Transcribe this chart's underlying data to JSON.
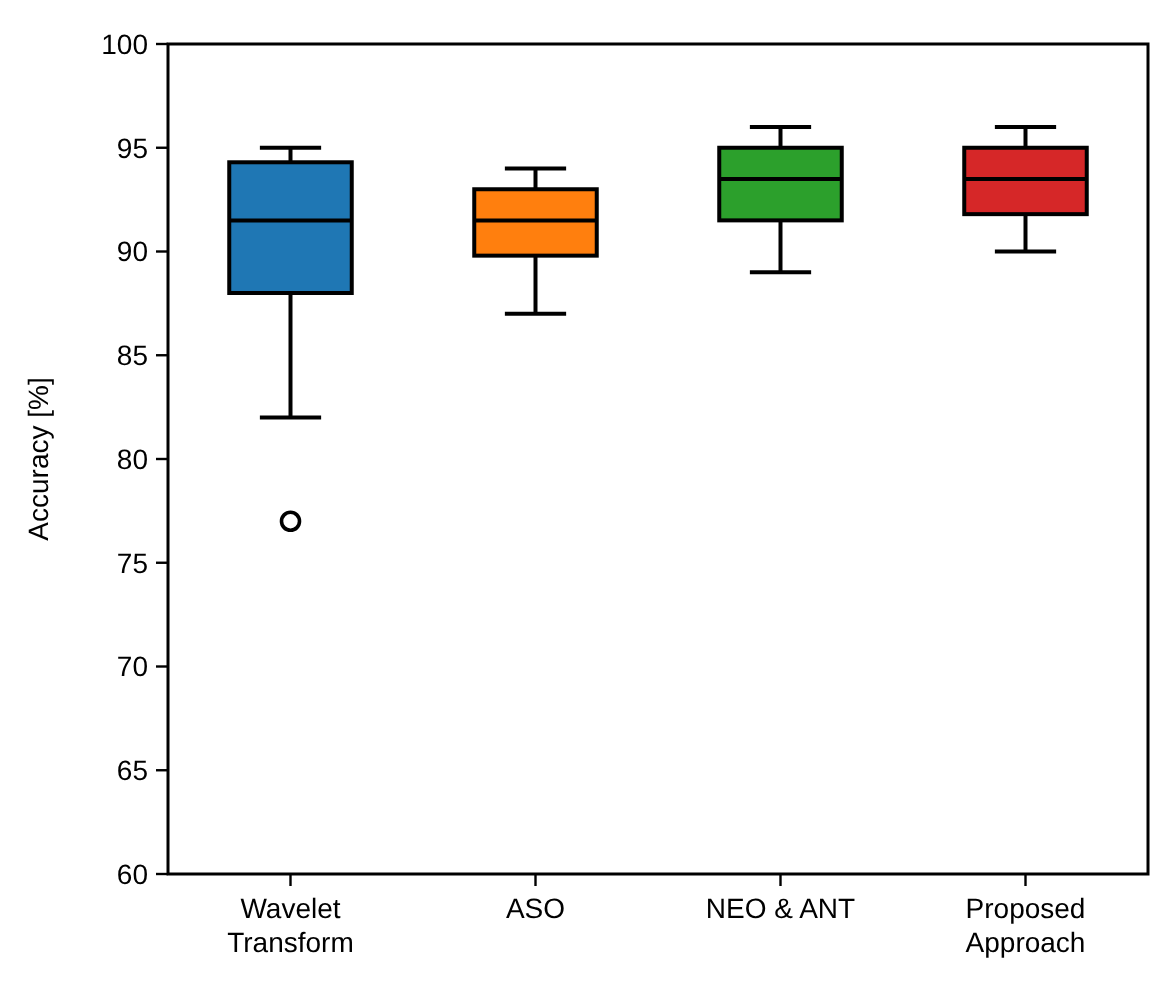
{
  "chart_data": {
    "type": "box",
    "ylabel": "Accuracy [%]",
    "categories": [
      "Wavelet\nTransform",
      "ASO",
      "NEO & ANT",
      "Proposed\nApproach"
    ],
    "colors": [
      "#1f77b4",
      "#ff7f0e",
      "#2ca02c",
      "#d62728"
    ],
    "boxes": [
      {
        "low": 82,
        "q1": 88,
        "median": 91.5,
        "q3": 94.3,
        "high": 95,
        "outliers": [
          77
        ]
      },
      {
        "low": 87,
        "q1": 89.8,
        "median": 91.5,
        "q3": 93,
        "high": 94
      },
      {
        "low": 89,
        "q1": 91.5,
        "median": 93.5,
        "q3": 95,
        "high": 96
      },
      {
        "low": 90,
        "q1": 91.8,
        "median": 93.5,
        "q3": 95,
        "high": 96
      }
    ],
    "ylim": [
      60,
      100
    ],
    "yticks": [
      60,
      65,
      70,
      75,
      80,
      85,
      90,
      95,
      100
    ],
    "grid": false
  }
}
